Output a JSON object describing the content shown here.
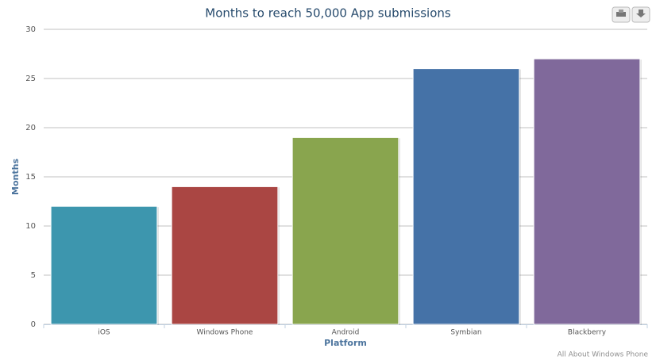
{
  "chart_data": {
    "type": "bar",
    "title": "Months to reach 50,000 App submissions",
    "x_label": "Platform",
    "y_label": "Months",
    "categories": [
      "iOS",
      "Windows Phone",
      "Android",
      "Symbian",
      "Blackberry"
    ],
    "values": [
      12,
      14,
      19,
      26,
      27
    ],
    "colors": [
      "#3d96ae",
      "#aa4643",
      "#89a54e",
      "#4572a7",
      "#80699b"
    ],
    "ylim": [
      0,
      30
    ],
    "yticks": [
      0,
      5,
      10,
      15,
      20,
      25,
      30
    ],
    "grid": true,
    "credits": "All About Windows Phone"
  }
}
